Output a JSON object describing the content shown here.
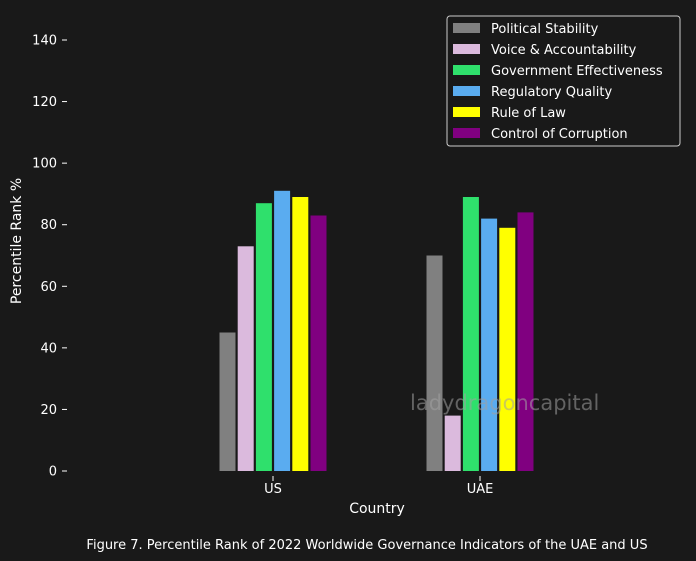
{
  "chart_data": {
    "type": "bar",
    "categories": [
      "US",
      "UAE"
    ],
    "series": [
      {
        "name": "Political Stability",
        "color": "#808080",
        "values": [
          45,
          70
        ]
      },
      {
        "name": "Voice & Accountability",
        "color": "#dbbadd",
        "values": [
          73,
          18
        ]
      },
      {
        "name": "Government Effectiveness",
        "color": "#2fe06c",
        "values": [
          87,
          89
        ]
      },
      {
        "name": "Regulatory Quality",
        "color": "#5aacf0",
        "values": [
          91,
          82
        ]
      },
      {
        "name": "Rule of Law",
        "color": "#ffff00",
        "values": [
          89,
          79
        ]
      },
      {
        "name": "Control of Corruption",
        "color": "#800080",
        "values": [
          83,
          84
        ]
      }
    ],
    "xlabel": "Country",
    "ylabel": "Percentile Rank %",
    "ylim": [
      0,
      150
    ],
    "yticks": [
      0,
      20,
      40,
      60,
      80,
      100,
      120,
      140
    ],
    "grid": false,
    "legend_position": "top-right"
  },
  "caption": "Figure 7. Percentile Rank of 2022 Worldwide Governance Indicators of the UAE and US",
  "watermark": "ladydragoncapital",
  "colors": {
    "background": "#191919",
    "text": "#ffffff",
    "legend_border": "#cccccc"
  }
}
